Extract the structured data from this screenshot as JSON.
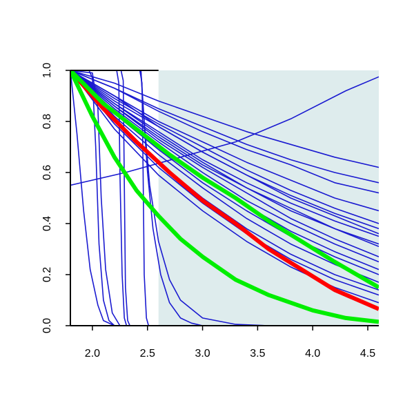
{
  "chart_data": {
    "type": "line",
    "title": "",
    "xlabel": "",
    "ylabel": "",
    "xlim": [
      1.8,
      4.6
    ],
    "ylim": [
      0.0,
      1.0
    ],
    "x_ticks": [
      2.0,
      2.5,
      3.0,
      3.5,
      4.0,
      4.5
    ],
    "x_tick_labels": [
      "2.0",
      "2.5",
      "3.0",
      "3.5",
      "4.0",
      "4.5"
    ],
    "y_ticks": [
      0.0,
      0.2,
      0.4,
      0.6,
      0.8,
      1.0
    ],
    "y_tick_labels": [
      "0.0",
      "0.2",
      "0.4",
      "0.6",
      "0.8",
      "1.0"
    ],
    "grid": false,
    "shaded_region": {
      "x_from": 2.6,
      "x_to": 4.6,
      "color": "#deeced"
    },
    "colors": {
      "blue": "#1a1ad0",
      "red": "#ff0000",
      "green": "#00ee00"
    },
    "series": [
      {
        "color": "blue",
        "points": [
          [
            1.8,
            1.0
          ],
          [
            2.2,
            0.9
          ],
          [
            2.6,
            0.78
          ],
          [
            3.0,
            0.68
          ],
          [
            3.4,
            0.59
          ],
          [
            3.8,
            0.51
          ],
          [
            4.2,
            0.44
          ],
          [
            4.6,
            0.38
          ]
        ]
      },
      {
        "color": "blue",
        "points": [
          [
            1.8,
            1.0
          ],
          [
            2.2,
            0.87
          ],
          [
            2.6,
            0.75
          ],
          [
            3.0,
            0.64
          ],
          [
            3.4,
            0.54
          ],
          [
            3.8,
            0.46
          ],
          [
            4.2,
            0.38
          ],
          [
            4.6,
            0.32
          ]
        ]
      },
      {
        "color": "blue",
        "points": [
          [
            1.8,
            1.0
          ],
          [
            2.2,
            0.93
          ],
          [
            2.6,
            0.84
          ],
          [
            3.0,
            0.76
          ],
          [
            3.4,
            0.69
          ],
          [
            3.8,
            0.63
          ],
          [
            4.2,
            0.56
          ],
          [
            4.6,
            0.52
          ]
        ]
      },
      {
        "color": "blue",
        "points": [
          [
            1.8,
            1.0
          ],
          [
            2.2,
            0.95
          ],
          [
            2.6,
            0.88
          ],
          [
            3.0,
            0.82
          ],
          [
            3.4,
            0.76
          ],
          [
            3.8,
            0.71
          ],
          [
            4.2,
            0.66
          ],
          [
            4.6,
            0.62
          ]
        ]
      },
      {
        "color": "blue",
        "points": [
          [
            1.8,
            1.0
          ],
          [
            2.2,
            0.93
          ],
          [
            2.6,
            0.85
          ],
          [
            3.0,
            0.78
          ],
          [
            3.4,
            0.71
          ],
          [
            3.8,
            0.65
          ],
          [
            4.2,
            0.6
          ],
          [
            4.6,
            0.56
          ]
        ]
      },
      {
        "color": "blue",
        "points": [
          [
            1.8,
            1.0
          ],
          [
            2.2,
            0.88
          ],
          [
            2.6,
            0.78
          ],
          [
            3.0,
            0.68
          ],
          [
            3.4,
            0.59
          ],
          [
            3.8,
            0.5
          ],
          [
            4.2,
            0.43
          ],
          [
            4.6,
            0.36
          ]
        ]
      },
      {
        "color": "blue",
        "points": [
          [
            1.8,
            1.0
          ],
          [
            2.2,
            0.89
          ],
          [
            2.6,
            0.79
          ],
          [
            3.0,
            0.7
          ],
          [
            3.4,
            0.61
          ],
          [
            3.8,
            0.53
          ],
          [
            4.2,
            0.46
          ],
          [
            4.6,
            0.4
          ]
        ]
      },
      {
        "color": "blue",
        "points": [
          [
            1.8,
            1.0
          ],
          [
            2.2,
            0.86
          ],
          [
            2.6,
            0.73
          ],
          [
            3.0,
            0.62
          ],
          [
            3.4,
            0.52
          ],
          [
            3.8,
            0.42
          ],
          [
            4.2,
            0.34
          ],
          [
            4.6,
            0.27
          ]
        ]
      },
      {
        "color": "blue",
        "points": [
          [
            1.8,
            1.0
          ],
          [
            2.2,
            0.85
          ],
          [
            2.6,
            0.72
          ],
          [
            3.0,
            0.6
          ],
          [
            3.4,
            0.49
          ],
          [
            3.8,
            0.4
          ],
          [
            4.2,
            0.32
          ],
          [
            4.6,
            0.25
          ]
        ]
      },
      {
        "color": "blue",
        "points": [
          [
            1.8,
            1.0
          ],
          [
            2.2,
            0.84
          ],
          [
            2.6,
            0.7
          ],
          [
            3.0,
            0.58
          ],
          [
            3.4,
            0.47
          ],
          [
            3.8,
            0.37
          ],
          [
            4.2,
            0.29
          ],
          [
            4.6,
            0.22
          ]
        ]
      },
      {
        "color": "blue",
        "points": [
          [
            1.8,
            1.0
          ],
          [
            2.2,
            0.83
          ],
          [
            2.6,
            0.69
          ],
          [
            3.0,
            0.56
          ],
          [
            3.4,
            0.45
          ],
          [
            3.8,
            0.35
          ],
          [
            4.2,
            0.27
          ],
          [
            4.6,
            0.2
          ]
        ]
      },
      {
        "color": "blue",
        "points": [
          [
            1.8,
            1.0
          ],
          [
            2.2,
            0.82
          ],
          [
            2.6,
            0.67
          ],
          [
            3.0,
            0.54
          ],
          [
            3.4,
            0.42
          ],
          [
            3.8,
            0.32
          ],
          [
            4.2,
            0.24
          ],
          [
            4.6,
            0.17
          ]
        ]
      },
      {
        "color": "blue",
        "points": [
          [
            1.8,
            1.0
          ],
          [
            2.2,
            0.8
          ],
          [
            2.6,
            0.64
          ],
          [
            3.0,
            0.5
          ],
          [
            3.4,
            0.38
          ],
          [
            3.8,
            0.28
          ],
          [
            4.2,
            0.2
          ],
          [
            4.6,
            0.14
          ]
        ]
      },
      {
        "color": "blue",
        "points": [
          [
            1.8,
            1.0
          ],
          [
            2.2,
            0.79
          ],
          [
            2.6,
            0.62
          ],
          [
            3.0,
            0.48
          ],
          [
            3.4,
            0.36
          ],
          [
            3.8,
            0.26
          ],
          [
            4.2,
            0.18
          ],
          [
            4.6,
            0.12
          ]
        ]
      },
      {
        "color": "blue",
        "points": [
          [
            1.8,
            1.0
          ],
          [
            2.2,
            0.77
          ],
          [
            2.6,
            0.59
          ],
          [
            3.0,
            0.45
          ],
          [
            3.4,
            0.33
          ],
          [
            3.8,
            0.23
          ],
          [
            4.2,
            0.15
          ],
          [
            4.6,
            0.09
          ]
        ]
      },
      {
        "color": "blue",
        "points": [
          [
            1.8,
            1.0
          ],
          [
            2.2,
            0.86
          ],
          [
            2.6,
            0.74
          ],
          [
            3.0,
            0.63
          ],
          [
            3.4,
            0.54
          ],
          [
            3.8,
            0.45
          ],
          [
            4.2,
            0.38
          ],
          [
            4.6,
            0.31
          ]
        ]
      },
      {
        "color": "blue",
        "points": [
          [
            1.8,
            1.0
          ],
          [
            2.2,
            0.87
          ],
          [
            2.6,
            0.76
          ],
          [
            3.0,
            0.65
          ],
          [
            3.4,
            0.56
          ],
          [
            3.8,
            0.48
          ],
          [
            4.2,
            0.41
          ],
          [
            4.6,
            0.35
          ]
        ]
      },
      {
        "color": "blue",
        "points": [
          [
            1.8,
            1.0
          ],
          [
            2.2,
            0.9
          ],
          [
            2.6,
            0.8
          ],
          [
            3.0,
            0.72
          ],
          [
            3.4,
            0.64
          ],
          [
            3.8,
            0.57
          ],
          [
            4.2,
            0.5
          ],
          [
            4.6,
            0.45
          ]
        ]
      },
      {
        "color": "blue",
        "points": [
          [
            1.8,
            0.55
          ],
          [
            2.3,
            0.6
          ],
          [
            2.8,
            0.66
          ],
          [
            3.3,
            0.72
          ],
          [
            3.8,
            0.81
          ],
          [
            4.3,
            0.92
          ],
          [
            4.6,
            0.975
          ]
        ]
      },
      {
        "color": "blue",
        "points": [
          [
            1.8,
            1.0
          ],
          [
            1.86,
            0.75
          ],
          [
            1.92,
            0.45
          ],
          [
            1.98,
            0.22
          ],
          [
            2.05,
            0.08
          ],
          [
            2.1,
            0.02
          ],
          [
            2.2,
            0.0
          ],
          [
            4.6,
            0.0
          ]
        ]
      },
      {
        "color": "blue",
        "points": [
          [
            1.8,
            1.0
          ],
          [
            1.97,
            1.0
          ],
          [
            2.0,
            0.97
          ],
          [
            2.03,
            0.7
          ],
          [
            2.06,
            0.32
          ],
          [
            2.1,
            0.1
          ],
          [
            2.15,
            0.02
          ],
          [
            2.2,
            0.0
          ],
          [
            4.6,
            0.0
          ]
        ]
      },
      {
        "color": "blue",
        "points": [
          [
            1.8,
            1.0
          ],
          [
            2.0,
            0.99
          ],
          [
            2.05,
            0.85
          ],
          [
            2.08,
            0.5
          ],
          [
            2.12,
            0.22
          ],
          [
            2.18,
            0.05
          ],
          [
            2.25,
            0.0
          ],
          [
            4.6,
            0.0
          ]
        ]
      },
      {
        "color": "blue",
        "points": [
          [
            1.8,
            1.0
          ],
          [
            2.22,
            1.0
          ],
          [
            2.24,
            0.95
          ],
          [
            2.25,
            0.6
          ],
          [
            2.27,
            0.2
          ],
          [
            2.29,
            0.03
          ],
          [
            2.31,
            0.0
          ],
          [
            4.6,
            0.0
          ]
        ]
      },
      {
        "color": "blue",
        "points": [
          [
            1.8,
            1.0
          ],
          [
            2.26,
            1.0
          ],
          [
            2.28,
            0.96
          ],
          [
            2.29,
            0.55
          ],
          [
            2.3,
            0.15
          ],
          [
            2.32,
            0.02
          ],
          [
            2.34,
            0.0
          ],
          [
            4.6,
            0.0
          ]
        ]
      },
      {
        "color": "blue",
        "points": [
          [
            1.8,
            1.0
          ],
          [
            2.43,
            1.0
          ],
          [
            2.45,
            0.95
          ],
          [
            2.46,
            0.6
          ],
          [
            2.47,
            0.2
          ],
          [
            2.49,
            0.03
          ],
          [
            2.51,
            0.0
          ],
          [
            4.6,
            0.0
          ]
        ]
      },
      {
        "color": "blue",
        "points": [
          [
            1.8,
            1.0
          ],
          [
            2.44,
            1.0
          ],
          [
            2.46,
            0.85
          ],
          [
            2.5,
            0.6
          ],
          [
            2.55,
            0.38
          ],
          [
            2.62,
            0.2
          ],
          [
            2.7,
            0.09
          ],
          [
            2.8,
            0.03
          ],
          [
            2.9,
            0.01
          ],
          [
            3.0,
            0.0
          ],
          [
            4.6,
            0.0
          ]
        ]
      },
      {
        "color": "blue",
        "points": [
          [
            1.8,
            1.0
          ],
          [
            2.44,
            1.0
          ],
          [
            2.47,
            0.8
          ],
          [
            2.52,
            0.55
          ],
          [
            2.6,
            0.33
          ],
          [
            2.7,
            0.18
          ],
          [
            2.8,
            0.1
          ],
          [
            3.0,
            0.03
          ],
          [
            3.3,
            0.005
          ],
          [
            3.6,
            0.0
          ],
          [
            4.6,
            0.0
          ]
        ]
      },
      {
        "color": "red",
        "points": [
          [
            1.8,
            1.0
          ],
          [
            2.1,
            0.85
          ],
          [
            2.4,
            0.72
          ],
          [
            2.7,
            0.6
          ],
          [
            3.0,
            0.49
          ],
          [
            3.3,
            0.4
          ],
          [
            3.6,
            0.3
          ],
          [
            3.9,
            0.22
          ],
          [
            4.2,
            0.14
          ],
          [
            4.6,
            0.065
          ]
        ]
      },
      {
        "color": "green",
        "points": [
          [
            1.8,
            1.0
          ],
          [
            2.1,
            0.87
          ],
          [
            2.4,
            0.77
          ],
          [
            2.7,
            0.67
          ],
          [
            3.0,
            0.58
          ],
          [
            3.3,
            0.5
          ],
          [
            3.6,
            0.41
          ],
          [
            3.9,
            0.33
          ],
          [
            4.2,
            0.25
          ],
          [
            4.6,
            0.15
          ]
        ]
      },
      {
        "color": "green",
        "points": [
          [
            1.8,
            1.0
          ],
          [
            2.0,
            0.82
          ],
          [
            2.2,
            0.66
          ],
          [
            2.4,
            0.53
          ],
          [
            2.6,
            0.43
          ],
          [
            2.8,
            0.34
          ],
          [
            3.0,
            0.27
          ],
          [
            3.3,
            0.18
          ],
          [
            3.6,
            0.12
          ],
          [
            4.0,
            0.06
          ],
          [
            4.3,
            0.03
          ],
          [
            4.6,
            0.015
          ]
        ]
      }
    ]
  }
}
